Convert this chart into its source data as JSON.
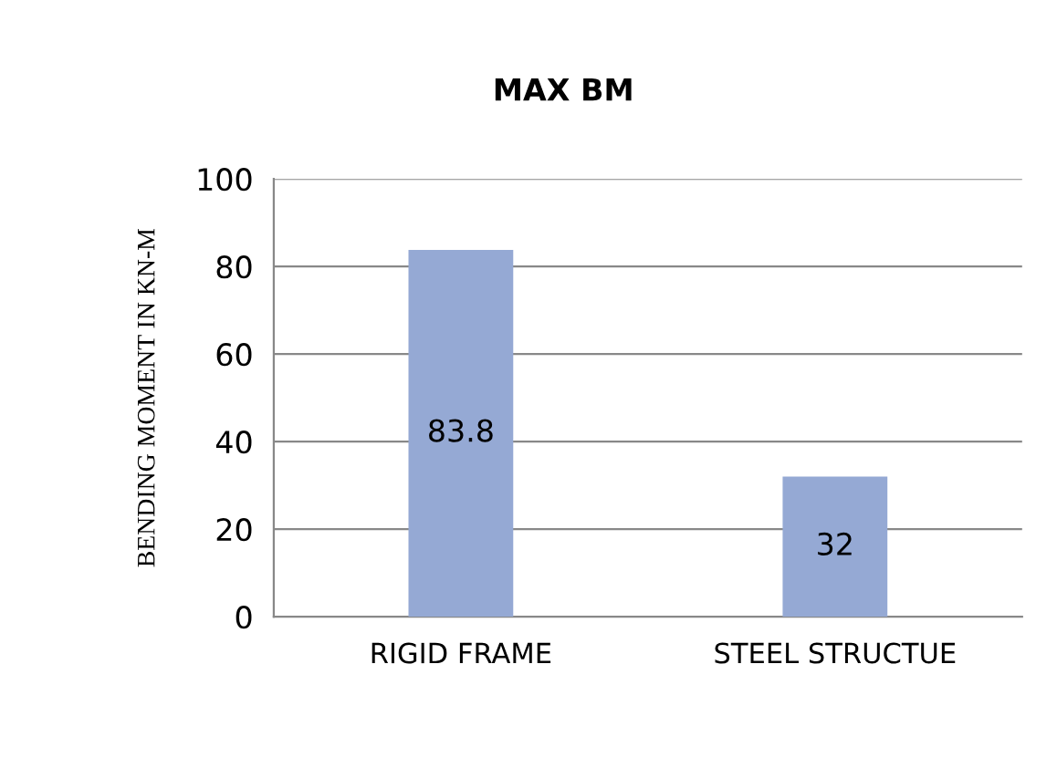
{
  "chart_data": {
    "type": "bar",
    "title": "MAX BM",
    "ylabel": "BENDING MOMENT IN KN-M",
    "categories": [
      "RIGID FRAME",
      "STEEL STRUCTUE"
    ],
    "values": [
      83.8,
      32
    ],
    "color": "#95a9d4",
    "ylim": [
      0,
      100
    ],
    "yticks": [
      0,
      20,
      40,
      60,
      80,
      100
    ],
    "grid": "y",
    "data_labels": true
  }
}
